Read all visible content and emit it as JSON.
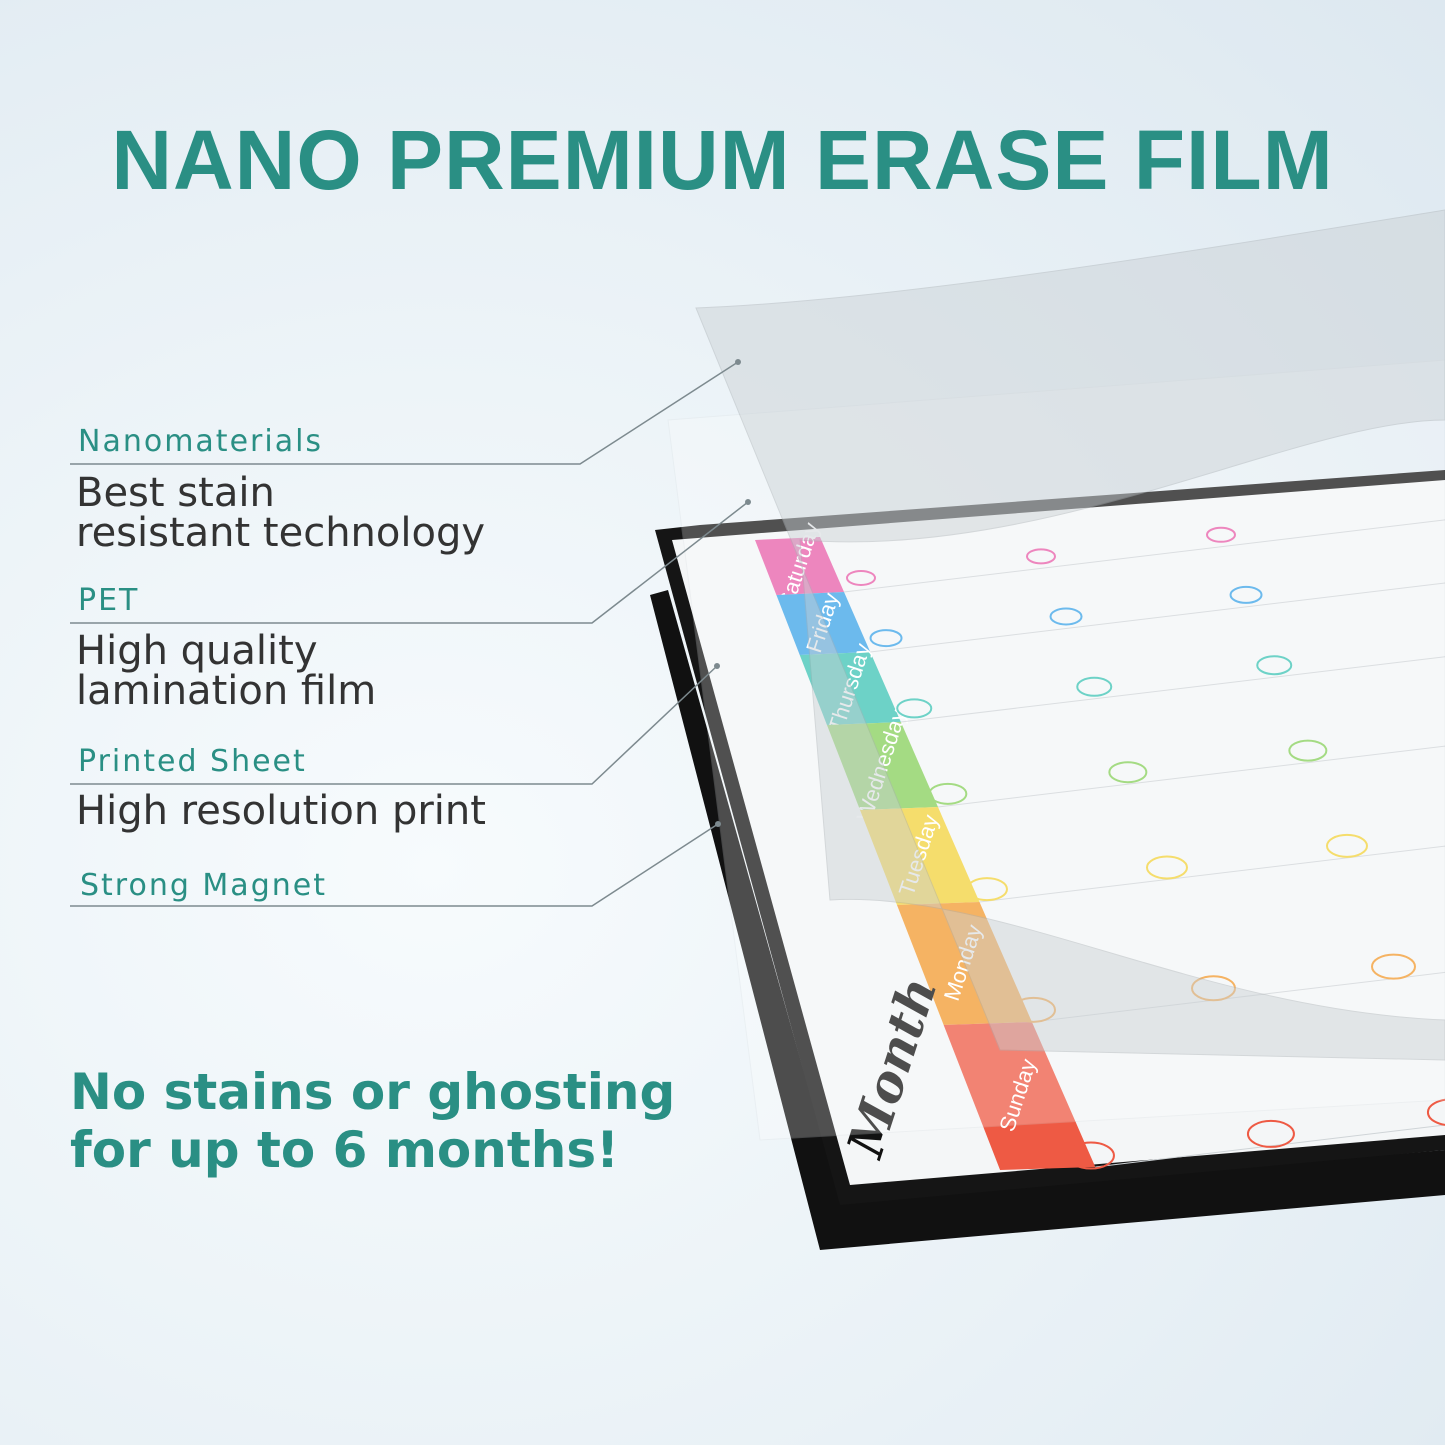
{
  "title": "NANO PREMIUM ERASE FILM",
  "layers": [
    {
      "label": "Nanomaterials",
      "description_lines": [
        "Best stain",
        "resistant technology"
      ]
    },
    {
      "label": "PET",
      "description_lines": [
        "High quality",
        "lamination film"
      ]
    },
    {
      "label": "Printed Sheet",
      "description_lines": [
        "High resolution print"
      ]
    },
    {
      "label": "Strong Magnet",
      "description_lines": []
    }
  ],
  "slogan_lines": [
    "No stains or ghosting",
    "for up to 6 months!"
  ],
  "calendar": {
    "heading": "Month",
    "days": [
      {
        "name": "Saturday",
        "color": "#e85da8"
      },
      {
        "name": "Friday",
        "color": "#3aa3e8"
      },
      {
        "name": "Thursday",
        "color": "#3cc3b4"
      },
      {
        "name": "Wednesday",
        "color": "#86cf5a"
      },
      {
        "name": "Tuesday",
        "color": "#f2d23a"
      },
      {
        "name": "Monday",
        "color": "#f29a2e"
      },
      {
        "name": "Sunday",
        "color": "#ee5a44"
      }
    ]
  },
  "colors": {
    "accent": "#2a8f84",
    "text": "#333333"
  }
}
